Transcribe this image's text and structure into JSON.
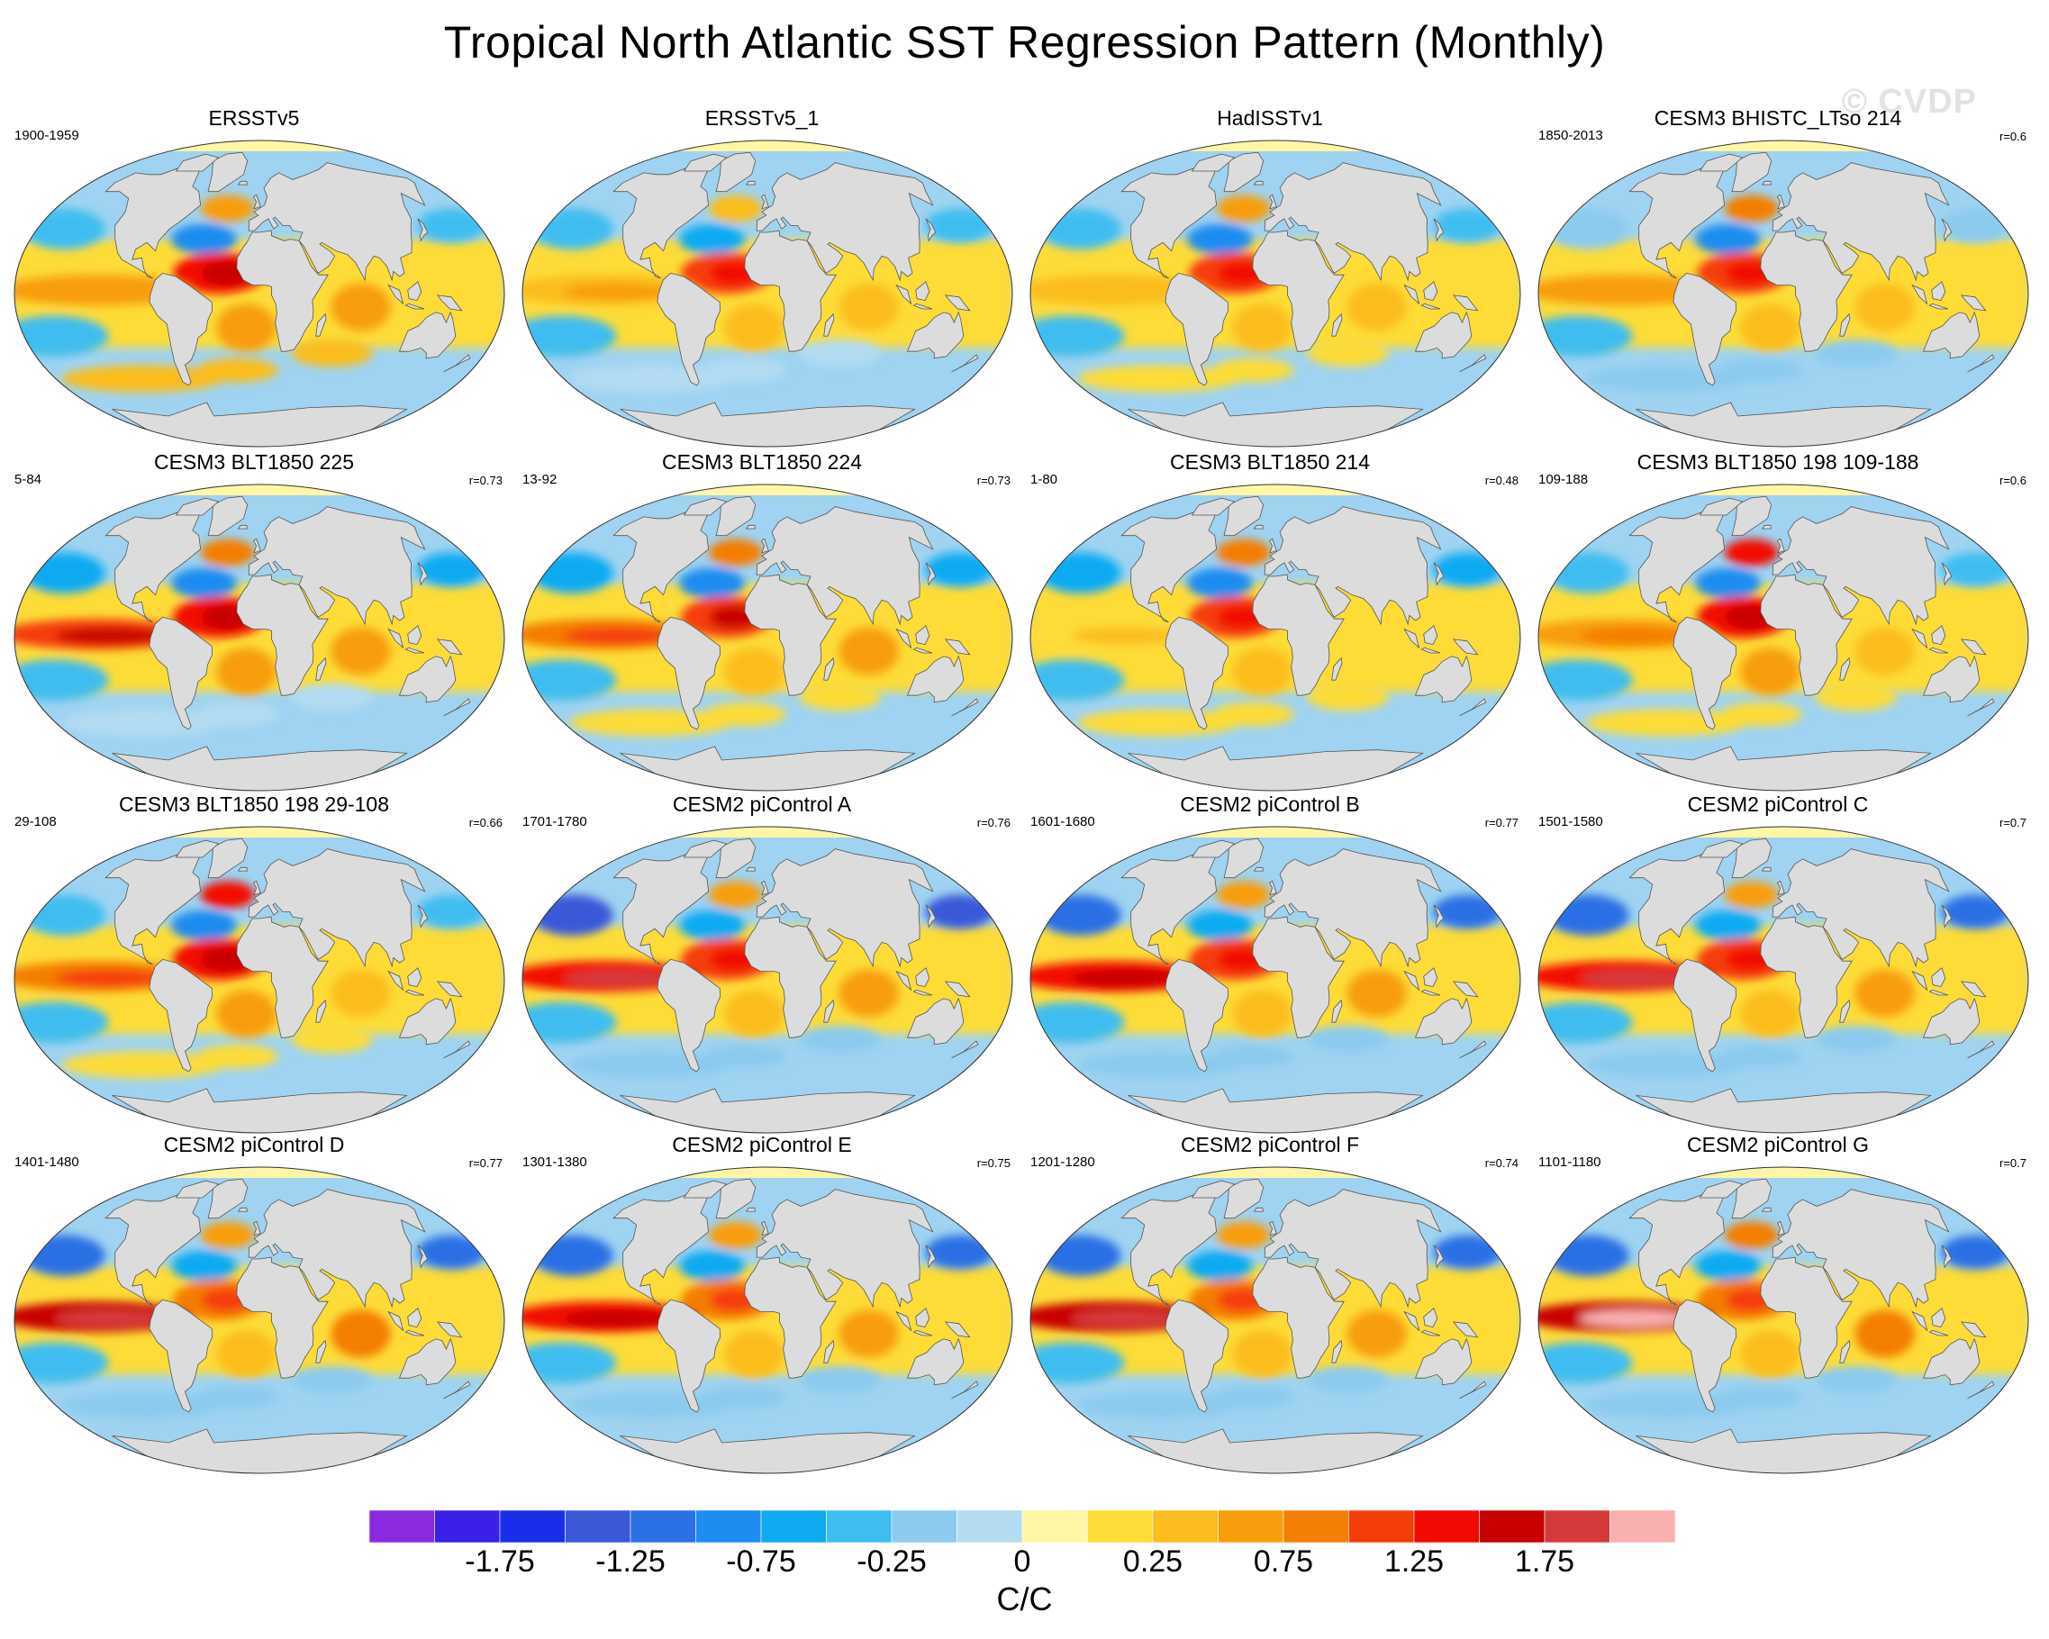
{
  "title": "Tropical North Atlantic SST Regression Pattern (Monthly)",
  "watermark": "© CVDP",
  "panels": [
    {
      "title": "ERSSTv5",
      "period": "1900-1959",
      "r": ""
    },
    {
      "title": "ERSSTv5_1",
      "period": "",
      "r": ""
    },
    {
      "title": "HadISSTv1",
      "period": "",
      "r": ""
    },
    {
      "title": "CESM3 BHISTC_LTso 214",
      "period": "1850-2013",
      "r": "r=0.6"
    },
    {
      "title": "CESM3 BLT1850 225",
      "period": "5-84",
      "r": "r=0.73"
    },
    {
      "title": "CESM3 BLT1850 224",
      "period": "13-92",
      "r": "r=0.73"
    },
    {
      "title": "CESM3 BLT1850 214",
      "period": "1-80",
      "r": "r=0.48"
    },
    {
      "title": "CESM3 BLT1850 198 109-188",
      "period": "109-188",
      "r": "r=0.6"
    },
    {
      "title": "CESM3 BLT1850 198 29-108",
      "period": "29-108",
      "r": "r=0.66"
    },
    {
      "title": "CESM2 piControl A",
      "period": "1701-1780",
      "r": "r=0.76"
    },
    {
      "title": "CESM2 piControl B",
      "period": "1601-1680",
      "r": "r=0.77"
    },
    {
      "title": "CESM2 piControl C",
      "period": "1501-1580",
      "r": "r=0.7"
    },
    {
      "title": "CESM2 piControl D",
      "period": "1401-1480",
      "r": "r=0.77"
    },
    {
      "title": "CESM2 piControl E",
      "period": "1301-1380",
      "r": "r=0.75"
    },
    {
      "title": "CESM2 piControl F",
      "period": "1201-1280",
      "r": "r=0.74"
    },
    {
      "title": "CESM2 piControl G",
      "period": "1101-1180",
      "r": "r=0.7"
    }
  ],
  "chart_data": {
    "type": "heatmap",
    "projection": "Robinson (global, centered 0°)",
    "units": "C/C",
    "colorbar": {
      "levels": [
        -2.0,
        -1.75,
        -1.5,
        -1.25,
        -1.0,
        -0.75,
        -0.5,
        -0.25,
        -0.1,
        0,
        0.1,
        0.25,
        0.5,
        0.75,
        1.0,
        1.25,
        1.5,
        1.75,
        2.0
      ],
      "tick_labels": [
        "-1.75",
        "-1.25",
        "-0.75",
        "-0.25",
        "0",
        "0.25",
        "0.75",
        "1.25",
        "1.75"
      ],
      "tick_values": [
        -1.75,
        -1.25,
        -0.75,
        -0.25,
        0,
        0.25,
        0.75,
        1.25,
        1.75
      ],
      "colors": [
        "#8a2be2",
        "#3a1fe6",
        "#1a2eea",
        "#3a58d8",
        "#2a6fe4",
        "#1e8cf0",
        "#10aaf2",
        "#3fbdf0",
        "#8ccbee",
        "#b3dcf2",
        "#fff6a6",
        "#fddc38",
        "#fbbd1e",
        "#f89d0c",
        "#f47e06",
        "#f53d0a",
        "#f20a02",
        "#c80000",
        "#d53a3a",
        "#fbb0b0"
      ]
    },
    "colors": {
      "land": "#dcdcdc",
      "coast": "#555555",
      "neutral_ocean": "#fff6a6"
    },
    "panel_patterns": [
      {
        "tna": 1.25,
        "nino": 0.5,
        "io": 0.6,
        "so": 0.25,
        "natl": 0.5,
        "npac": -0.3
      },
      {
        "tna": 1.0,
        "nino": 0.4,
        "io": 0.4,
        "so": -0.1,
        "natl": 0.4,
        "npac": -0.5
      },
      {
        "tna": 1.1,
        "nino": 0.3,
        "io": 0.4,
        "so": 0.1,
        "natl": 0.7,
        "npac": -0.5
      },
      {
        "tna": 1.1,
        "nino": 0.5,
        "io": 0.4,
        "so": -0.2,
        "natl": 0.8,
        "npac": -0.2
      },
      {
        "tna": 1.3,
        "nino": 1.2,
        "io": 0.6,
        "so": -0.1,
        "natl": 0.9,
        "npac": -0.6
      },
      {
        "tna": 1.2,
        "nino": 0.9,
        "io": 0.5,
        "so": 0.1,
        "natl": 0.8,
        "npac": -0.6
      },
      {
        "tna": 1.1,
        "nino": 0.2,
        "io": 0.2,
        "so": 0.2,
        "natl": 0.9,
        "npac": -0.7
      },
      {
        "tna": 1.3,
        "nino": 0.6,
        "io": 0.4,
        "so": 0.1,
        "natl": 1.3,
        "npac": -0.3
      },
      {
        "tna": 1.3,
        "nino": 0.8,
        "io": 0.4,
        "so": 0.1,
        "natl": 1.3,
        "npac": -0.5
      },
      {
        "tna": 1.0,
        "nino": 1.4,
        "io": 0.7,
        "so": -0.2,
        "natl": 0.6,
        "npac": -1.3
      },
      {
        "tna": 1.0,
        "nino": 1.3,
        "io": 0.6,
        "so": -0.2,
        "natl": 0.6,
        "npac": -1.1
      },
      {
        "tna": 1.0,
        "nino": 1.4,
        "io": 0.7,
        "so": -0.2,
        "natl": 0.6,
        "npac": -1.1
      },
      {
        "tna": 0.9,
        "nino": 1.5,
        "io": 0.8,
        "so": -0.2,
        "natl": 0.5,
        "npac": -1.2
      },
      {
        "tna": 0.9,
        "nino": 1.3,
        "io": 0.7,
        "so": -0.2,
        "natl": 0.6,
        "npac": -1.1
      },
      {
        "tna": 0.9,
        "nino": 1.5,
        "io": 0.7,
        "so": -0.2,
        "natl": 0.6,
        "npac": -1.2
      },
      {
        "tna": 0.9,
        "nino": 1.6,
        "io": 0.8,
        "so": -0.2,
        "natl": 0.8,
        "npac": -1.2
      }
    ]
  }
}
